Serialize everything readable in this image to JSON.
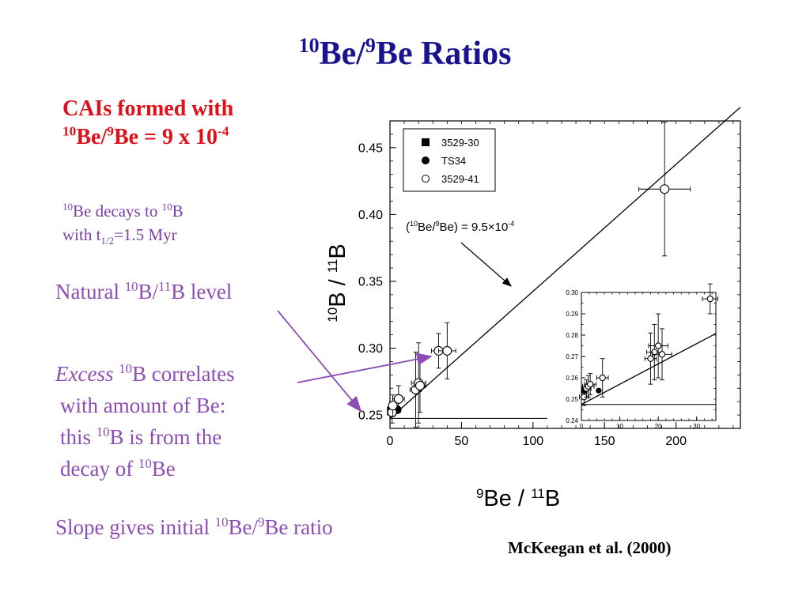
{
  "slide": {
    "title": {
      "sup1": "10",
      "mid": "Be/",
      "sup2": "9",
      "rest": "Be Ratios"
    },
    "red_note": {
      "line1": "CAIs formed with",
      "sup1": "10",
      "a": "Be/",
      "sup2": "9",
      "b": "Be = 9 x 10",
      "sup3": "-4"
    },
    "decay_note": {
      "sup1": "10",
      "a": "Be decays to ",
      "sup2": "10",
      "b": "B",
      "c": "with t",
      "sub": "1/2",
      "d": "=1.5 Myr"
    },
    "natural_label": {
      "a": "Natural ",
      "sup1": "10",
      "b": "B/",
      "sup2": "11",
      "c": "B level"
    },
    "excess_text": {
      "italic": "Excess",
      "sup1": "10",
      "a": "B correlates",
      "line2": "with amount of Be:",
      "line3a": "this ",
      "sup2": "10",
      "line3b": "B is from the",
      "line4a": "decay of ",
      "sup3": "10",
      "line4b": "Be"
    },
    "slope_text": {
      "a": "Slope gives initial ",
      "sup1": "10",
      "b": "Be/",
      "sup2": "9",
      "c": "Be ratio"
    },
    "citation": "McKeegan et al. (2000)",
    "arrow_color": "#8d4db5"
  },
  "chart_data": [
    {
      "type": "scatter",
      "title": "",
      "xlabel": {
        "sup1": "9",
        "a": "Be / ",
        "sup2": "11",
        "b": "B"
      },
      "ylabel": {
        "sup1": "10",
        "a": "B / ",
        "sup2": "11",
        "b": "B"
      },
      "xlim": [
        0,
        245
      ],
      "ylim": [
        0.24,
        0.47
      ],
      "x_ticks": [
        0,
        50,
        100,
        150,
        200
      ],
      "y_ticks": [
        0.25,
        0.3,
        0.35,
        0.4,
        0.45
      ],
      "x_tick_labels": [
        "0",
        "50",
        "100",
        "150",
        "200"
      ],
      "y_tick_labels": [
        "0.25",
        "0.30",
        "0.35",
        "0.40",
        "0.45"
      ],
      "legend": {
        "placement": "top-left",
        "entries": [
          {
            "name": "3529-30",
            "marker": "filled-square"
          },
          {
            "name": "TS34",
            "marker": "filled-circle"
          },
          {
            "name": "3529-41",
            "marker": "open-circle"
          }
        ]
      },
      "annotation": {
        "a": "(",
        "sup1": "10",
        "b": "Be/",
        "sup2": "9",
        "c": "Be)  =  9.5×10",
        "sup3": "-4"
      },
      "fit_line": {
        "slope": 0.00095,
        "intercept": 0.2475,
        "x_range": [
          0,
          245
        ]
      },
      "reference_line": {
        "y": 0.2475,
        "x_range": [
          0,
          110
        ]
      },
      "series": [
        {
          "name": "3529-30",
          "marker": "filled-square",
          "points": [
            {
              "x": 1,
              "y": 0.253
            }
          ]
        },
        {
          "name": "TS34",
          "marker": "filled-circle",
          "points": [
            {
              "x": 5,
              "y": 0.254
            }
          ]
        },
        {
          "name": "3529-41",
          "marker": "open-circle",
          "points": [
            {
              "x": 1.5,
              "y": 0.252,
              "xerr": 2,
              "yerr": 0.008
            },
            {
              "x": 2,
              "y": 0.257,
              "xerr": 2,
              "yerr": 0.008
            },
            {
              "x": 6,
              "y": 0.262,
              "xerr": 4,
              "yerr": 0.01
            },
            {
              "x": 18,
              "y": 0.269,
              "xerr": 4,
              "yerr": 0.028
            },
            {
              "x": 20,
              "y": 0.274,
              "xerr": 5,
              "yerr": 0.03
            },
            {
              "x": 21,
              "y": 0.272,
              "xerr": 4,
              "yerr": 0.02
            },
            {
              "x": 34,
              "y": 0.298,
              "xerr": 5,
              "yerr": 0.013
            },
            {
              "x": 40,
              "y": 0.298,
              "xerr": 6,
              "yerr": 0.021
            },
            {
              "x": 192,
              "y": 0.419,
              "xerr": 18,
              "yerr": 0.05
            }
          ]
        }
      ]
    },
    {
      "type": "scatter",
      "title": "",
      "xlim": [
        0,
        35
      ],
      "ylim": [
        0.24,
        0.3
      ],
      "x_ticks": [
        0,
        10,
        20,
        30
      ],
      "y_ticks": [
        0.24,
        0.25,
        0.26,
        0.27,
        0.28,
        0.29,
        0.3
      ],
      "x_tick_labels": [
        "0",
        "10",
        "20",
        "30"
      ],
      "y_tick_labels": [
        "0.24",
        "0.25",
        "0.26",
        "0.27",
        "0.28",
        "0.29",
        "0.30"
      ],
      "fit_line": {
        "slope": 0.00095,
        "intercept": 0.2475,
        "x_range": [
          0,
          35
        ]
      },
      "reference_line": {
        "y": 0.2475,
        "x_range": [
          0,
          35
        ]
      },
      "series": [
        {
          "name": "3529-30",
          "marker": "filled-square",
          "points": [
            {
              "x": 0.8,
              "y": 0.254
            }
          ]
        },
        {
          "name": "TS34",
          "marker": "filled-circle",
          "points": [
            {
              "x": 4.5,
              "y": 0.254
            }
          ]
        },
        {
          "name": "3529-41",
          "marker": "open-circle",
          "points": [
            {
              "x": 0.7,
              "y": 0.251,
              "xerr": 1.2,
              "yerr": 0.004
            },
            {
              "x": 1.3,
              "y": 0.255,
              "xerr": 1.2,
              "yerr": 0.004
            },
            {
              "x": 1.8,
              "y": 0.256,
              "xerr": 1.5,
              "yerr": 0.005
            },
            {
              "x": 2.3,
              "y": 0.257,
              "xerr": 1.5,
              "yerr": 0.005
            },
            {
              "x": 5.5,
              "y": 0.26,
              "xerr": 1.5,
              "yerr": 0.009
            },
            {
              "x": 18,
              "y": 0.269,
              "xerr": 1.5,
              "yerr": 0.012
            },
            {
              "x": 19,
              "y": 0.272,
              "xerr": 2,
              "yerr": 0.013
            },
            {
              "x": 20,
              "y": 0.275,
              "xerr": 2.5,
              "yerr": 0.015
            },
            {
              "x": 21,
              "y": 0.271,
              "xerr": 2.5,
              "yerr": 0.012
            },
            {
              "x": 33.5,
              "y": 0.297,
              "xerr": 2,
              "yerr": 0.007
            }
          ]
        }
      ]
    }
  ]
}
